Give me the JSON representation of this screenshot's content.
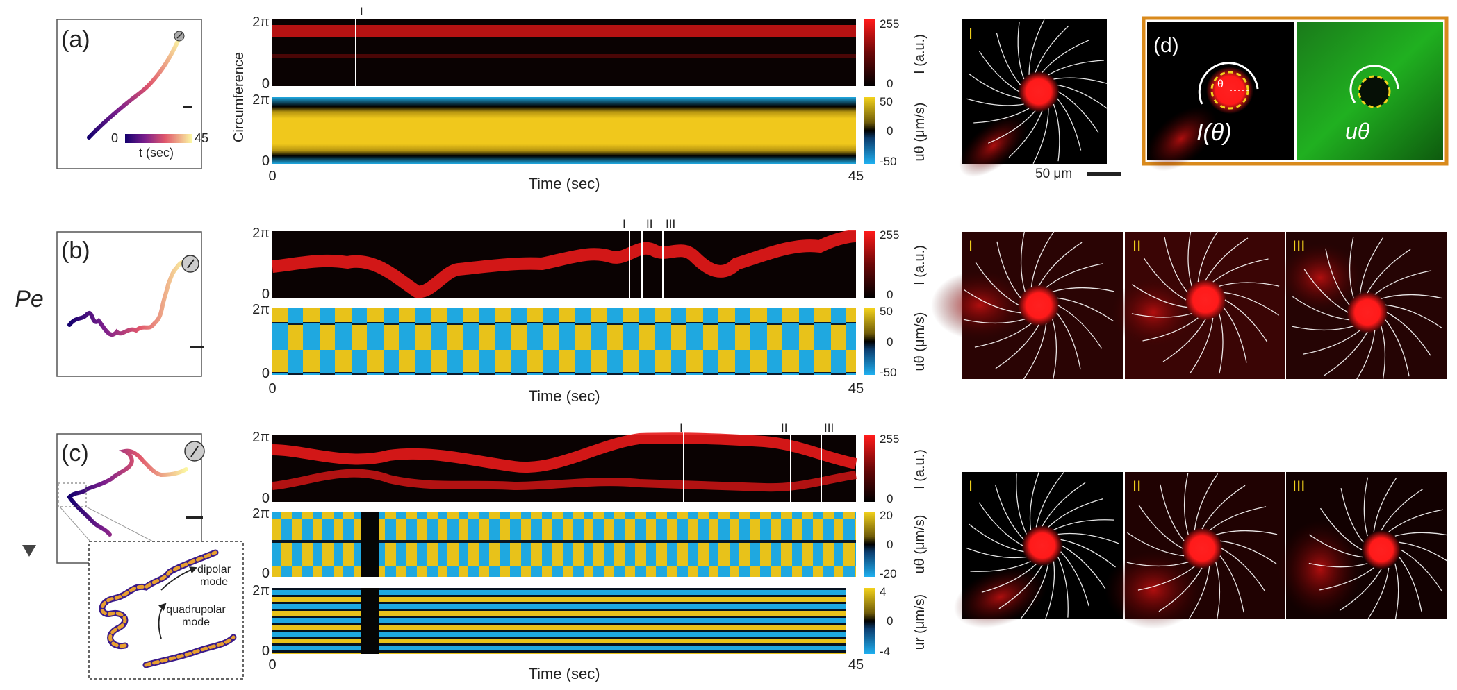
{
  "figure": {
    "axis_label_pe": "Pe",
    "panels": {
      "a": {
        "label": "(a)",
        "colorbar_min": "0",
        "colorbar_max": "45",
        "colorbar_label": "t (sec)",
        "stream_label": "I",
        "scale_bar_text": "50 μm",
        "kymo": {
          "ylabel": "Circumference",
          "y_top": "2π",
          "y_bottom": "0",
          "x_start": "0",
          "x_end": "45",
          "xlabel": "Time (sec)",
          "markers": [
            "I"
          ],
          "intensity_cbar": {
            "max": "255",
            "min": "0",
            "label": "I (a.u.)"
          },
          "velocity_cbar": {
            "max": "50",
            "mid": "0",
            "min": "-50",
            "label": "uθ (μm/s)"
          }
        }
      },
      "b": {
        "label": "(b)",
        "stream_labels": [
          "I",
          "II",
          "III"
        ],
        "kymo": {
          "y_top": "2π",
          "y_bottom": "0",
          "x_start": "0",
          "x_end": "45",
          "xlabel": "Time (sec)",
          "markers": [
            "I",
            "II",
            "III"
          ],
          "intensity_cbar": {
            "max": "255",
            "min": "0",
            "label": "I (a.u.)"
          },
          "velocity_cbar": {
            "max": "50",
            "mid": "0",
            "min": "-50",
            "label": "uθ (μm/s)"
          }
        }
      },
      "c": {
        "label": "(c)",
        "inset_dipolar": "dipolar mode",
        "inset_quadrupolar": "quadrupolar mode",
        "stream_labels": [
          "I",
          "II",
          "III"
        ],
        "kymo": {
          "y_top": "2π",
          "y_bottom": "0",
          "x_start": "0",
          "x_end": "45",
          "xlabel": "Time (sec)",
          "markers": [
            "I",
            "II",
            "III"
          ],
          "intensity_cbar": {
            "max": "255",
            "min": "0",
            "label": "I (a.u.)"
          },
          "velocity_cbar": {
            "max": "20",
            "mid": "0",
            "min": "-20",
            "label": "uθ (μm/s)"
          },
          "radial_cbar": {
            "max": "4",
            "mid": "0",
            "min": "-4",
            "label": "ur (μm/s)"
          }
        }
      },
      "d": {
        "label": "(d)",
        "left_label": "I(θ)",
        "theta": "θ",
        "right_label": "uθ"
      }
    },
    "colors": {
      "red": "#e8191a",
      "yellow": "#e8c21a",
      "blue": "#1fa8e0",
      "green": "#1aa81a",
      "orange": "#d98a1c"
    }
  }
}
